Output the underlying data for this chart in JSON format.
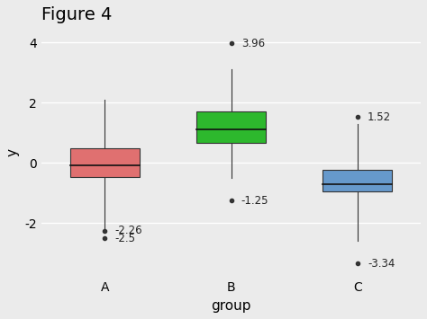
{
  "title": "Figure 4",
  "xlabel": "group",
  "ylabel": "y",
  "background_color": "#ebebeb",
  "groups": [
    "A",
    "B",
    "C"
  ],
  "colors": [
    "#e07070",
    "#2db82d",
    "#6699cc"
  ],
  "boxes": [
    {
      "label": "A",
      "q1": -0.48,
      "median": -0.08,
      "q3": 0.48,
      "whisker_low": -2.26,
      "whisker_high": 2.1,
      "outliers": [
        -2.26,
        -2.5
      ],
      "outlier_labels": [
        "-2.26",
        "-2.5"
      ]
    },
    {
      "label": "B",
      "q1": 0.65,
      "median": 1.1,
      "q3": 1.72,
      "whisker_low": -0.5,
      "whisker_high": 3.1,
      "outliers": [
        3.96,
        -1.25
      ],
      "outlier_labels": [
        "3.96",
        "-1.25"
      ]
    },
    {
      "label": "C",
      "q1": -0.95,
      "median": -0.7,
      "q3": -0.22,
      "whisker_low": -2.6,
      "whisker_high": 1.3,
      "outliers": [
        1.52,
        -3.34
      ],
      "outlier_labels": [
        "1.52",
        "-3.34"
      ]
    }
  ],
  "ylim": [
    -3.8,
    4.5
  ],
  "yticks": [
    -2,
    0,
    2,
    4
  ],
  "title_fontsize": 14,
  "axis_label_fontsize": 11,
  "tick_fontsize": 10
}
